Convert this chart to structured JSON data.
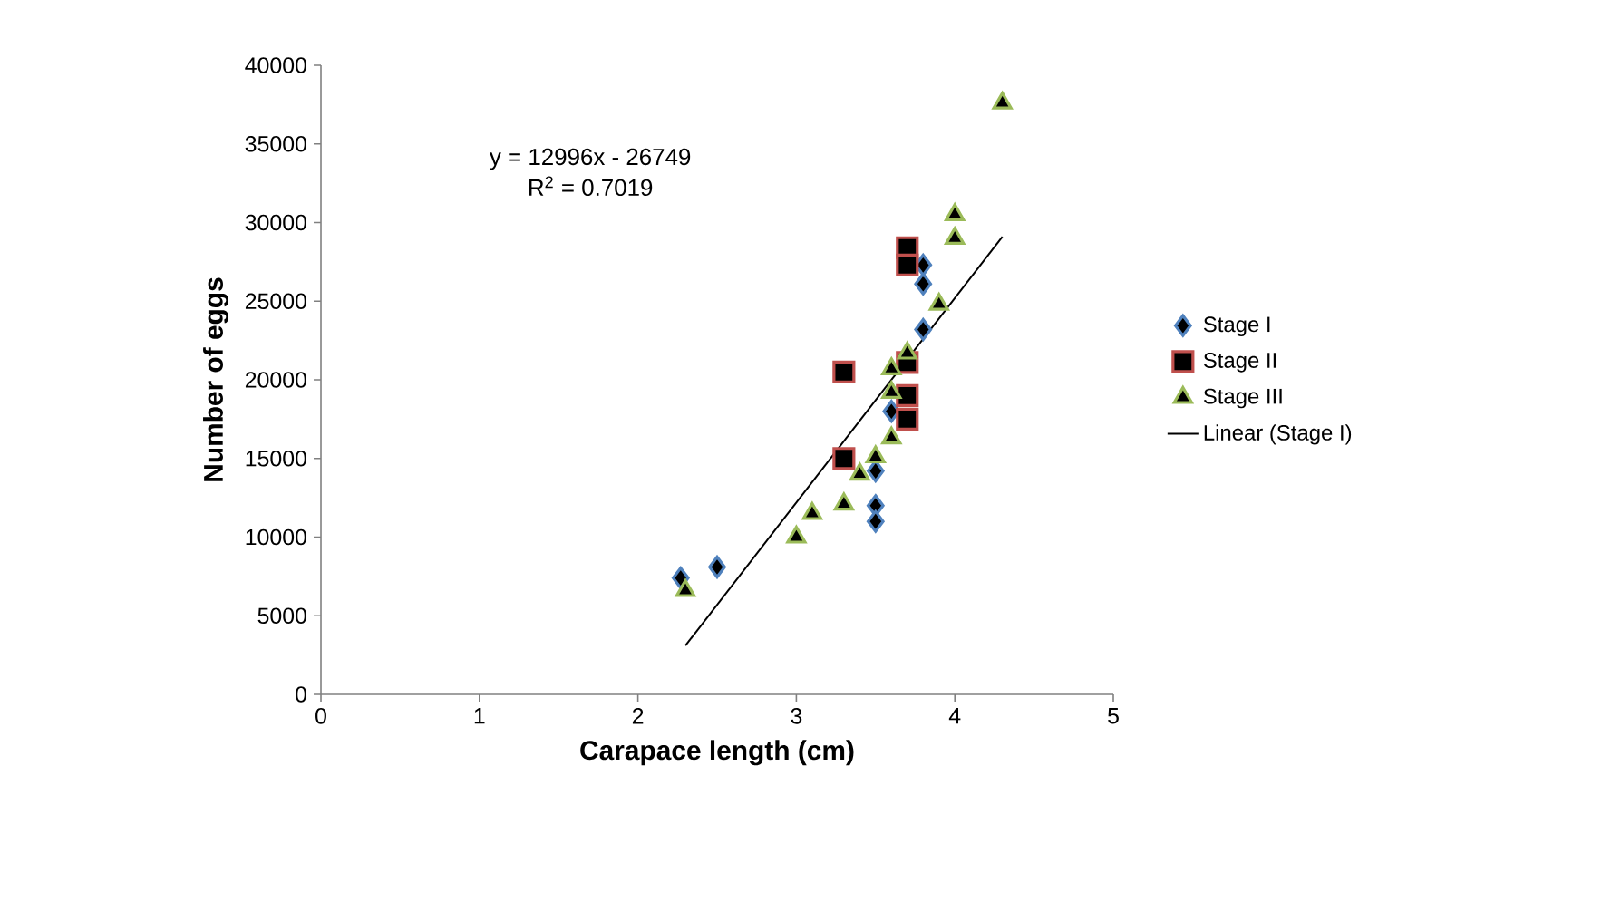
{
  "chart_data": {
    "type": "scatter",
    "xlabel": "Carapace length (cm)",
    "ylabel": "Number of  eggs",
    "xlim": [
      0,
      5
    ],
    "xticks": [
      0,
      1,
      2,
      3,
      4,
      5
    ],
    "ylim": [
      0,
      40000
    ],
    "yticks": [
      0,
      5000,
      10000,
      15000,
      20000,
      25000,
      30000,
      35000,
      40000
    ],
    "grid": false,
    "legend": "right",
    "annotations": [
      "y = 12996x - 26749",
      "R$^{2}$ = 0.7019"
    ],
    "series": [
      {
        "name": "Stage I",
        "color": "#4f81bd",
        "marker": "diamond",
        "x": [
          2.27,
          2.5,
          3.5,
          3.5,
          3.5,
          3.6,
          3.8,
          3.8,
          3.8
        ],
        "values": [
          7400,
          8100,
          12000,
          11000,
          14200,
          18000,
          23200,
          26100,
          27300
        ]
      },
      {
        "name": "Stage II",
        "color": "#c0504d",
        "marker": "square",
        "x": [
          3.3,
          3.3,
          3.7,
          3.7,
          3.7,
          3.7,
          3.7
        ],
        "values": [
          15000,
          20500,
          17500,
          19000,
          21100,
          28400,
          27300
        ]
      },
      {
        "name": "Stage III",
        "color": "#9bbb59",
        "marker": "triangle",
        "x": [
          2.3,
          3.0,
          3.1,
          3.3,
          3.4,
          3.5,
          3.6,
          3.6,
          3.6,
          3.7,
          3.9,
          4.0,
          4.0,
          4.3
        ],
        "values": [
          6600,
          10000,
          11500,
          12100,
          14000,
          15100,
          16300,
          19200,
          20700,
          21700,
          24800,
          30500,
          29000,
          37600
        ]
      },
      {
        "name": "Linear (Stage I)",
        "type": "line",
        "color": "#000000",
        "marker": "none",
        "line_style": "solid",
        "x": [
          2.3,
          4.3
        ],
        "values": [
          3100,
          29100
        ]
      }
    ]
  }
}
